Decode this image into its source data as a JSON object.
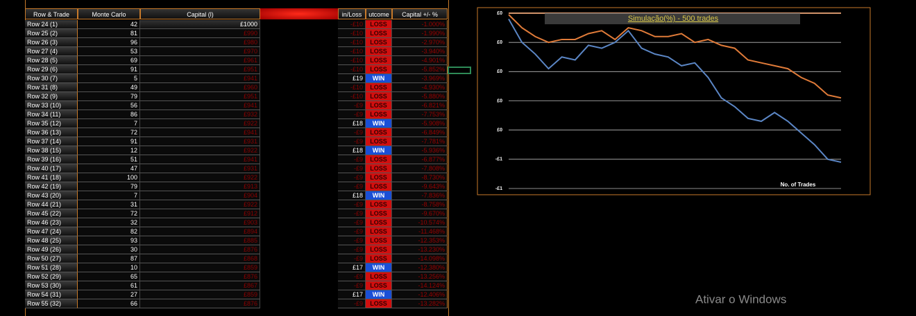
{
  "table": {
    "headers": [
      "Row & Trade",
      "Monte Carlo",
      "Capital (l)",
      "in/Loss",
      "utcome",
      "Capital +/- %"
    ],
    "rows": [
      {
        "row": "Row 24 (1)",
        "monte_carlo": 42,
        "capital": "£1000",
        "win_loss": "-£10",
        "outcome": "LOSS",
        "capital_pct": "-1.000%"
      },
      {
        "row": "Row 25 (2)",
        "monte_carlo": 81,
        "capital": "£990",
        "win_loss": "-£10",
        "outcome": "LOSS",
        "capital_pct": "-1.990%"
      },
      {
        "row": "Row 26 (3)",
        "monte_carlo": 96,
        "capital": "£980",
        "win_loss": "-£10",
        "outcome": "LOSS",
        "capital_pct": "-2.970%"
      },
      {
        "row": "Row 27 (4)",
        "monte_carlo": 53,
        "capital": "£970",
        "win_loss": "-£10",
        "outcome": "LOSS",
        "capital_pct": "-3.940%"
      },
      {
        "row": "Row 28 (5)",
        "monte_carlo": 69,
        "capital": "£961",
        "win_loss": "-£10",
        "outcome": "LOSS",
        "capital_pct": "-4.901%"
      },
      {
        "row": "Row 29 (6)",
        "monte_carlo": 91,
        "capital": "£951",
        "win_loss": "-£10",
        "outcome": "LOSS",
        "capital_pct": "-5.852%"
      },
      {
        "row": "Row 30 (7)",
        "monte_carlo": 5,
        "capital": "£941",
        "win_loss": "£19",
        "outcome": "WIN",
        "capital_pct": "-3.969%"
      },
      {
        "row": "Row 31 (8)",
        "monte_carlo": 49,
        "capital": "£960",
        "win_loss": "-£10",
        "outcome": "LOSS",
        "capital_pct": "-4.930%"
      },
      {
        "row": "Row 32 (9)",
        "monte_carlo": 79,
        "capital": "£951",
        "win_loss": "-£10",
        "outcome": "LOSS",
        "capital_pct": "-5.880%"
      },
      {
        "row": "Row 33 (10)",
        "monte_carlo": 56,
        "capital": "£941",
        "win_loss": "-£9",
        "outcome": "LOSS",
        "capital_pct": "-6.821%"
      },
      {
        "row": "Row 34 (11)",
        "monte_carlo": 86,
        "capital": "£932",
        "win_loss": "-£9",
        "outcome": "LOSS",
        "capital_pct": "-7.753%"
      },
      {
        "row": "Row 35 (12)",
        "monte_carlo": 7,
        "capital": "£922",
        "win_loss": "£18",
        "outcome": "WIN",
        "capital_pct": "-5.908%"
      },
      {
        "row": "Row 36 (13)",
        "monte_carlo": 72,
        "capital": "£941",
        "win_loss": "-£9",
        "outcome": "LOSS",
        "capital_pct": "-6.849%"
      },
      {
        "row": "Row 37 (14)",
        "monte_carlo": 91,
        "capital": "£931",
        "win_loss": "-£9",
        "outcome": "LOSS",
        "capital_pct": "-7.781%"
      },
      {
        "row": "Row 38 (15)",
        "monte_carlo": 12,
        "capital": "£922",
        "win_loss": "£18",
        "outcome": "WIN",
        "capital_pct": "-5.936%"
      },
      {
        "row": "Row 39 (16)",
        "monte_carlo": 51,
        "capital": "£941",
        "win_loss": "-£9",
        "outcome": "LOSS",
        "capital_pct": "-6.877%"
      },
      {
        "row": "Row 40 (17)",
        "monte_carlo": 47,
        "capital": "£931",
        "win_loss": "-£9",
        "outcome": "LOSS",
        "capital_pct": "-7.808%"
      },
      {
        "row": "Row 41 (18)",
        "monte_carlo": 100,
        "capital": "£922",
        "win_loss": "-£9",
        "outcome": "LOSS",
        "capital_pct": "-8.730%"
      },
      {
        "row": "Row 42 (19)",
        "monte_carlo": 79,
        "capital": "£913",
        "win_loss": "-£9",
        "outcome": "LOSS",
        "capital_pct": "-9.643%"
      },
      {
        "row": "Row 43 (20)",
        "monte_carlo": 7,
        "capital": "£904",
        "win_loss": "£18",
        "outcome": "WIN",
        "capital_pct": "-7.836%"
      },
      {
        "row": "Row 44 (21)",
        "monte_carlo": 31,
        "capital": "£922",
        "win_loss": "-£9",
        "outcome": "LOSS",
        "capital_pct": "-8.758%"
      },
      {
        "row": "Row 45 (22)",
        "monte_carlo": 72,
        "capital": "£912",
        "win_loss": "-£9",
        "outcome": "LOSS",
        "capital_pct": "-9.670%"
      },
      {
        "row": "Row 46 (23)",
        "monte_carlo": 32,
        "capital": "£903",
        "win_loss": "-£9",
        "outcome": "LOSS",
        "capital_pct": "-10.574%"
      },
      {
        "row": "Row 47 (24)",
        "monte_carlo": 82,
        "capital": "£894",
        "win_loss": "-£9",
        "outcome": "LOSS",
        "capital_pct": "-11.468%"
      },
      {
        "row": "Row 48 (25)",
        "monte_carlo": 93,
        "capital": "£885",
        "win_loss": "-£9",
        "outcome": "LOSS",
        "capital_pct": "-12.353%"
      },
      {
        "row": "Row 49 (26)",
        "monte_carlo": 30,
        "capital": "£876",
        "win_loss": "-£9",
        "outcome": "LOSS",
        "capital_pct": "-13.230%"
      },
      {
        "row": "Row 50 (27)",
        "monte_carlo": 87,
        "capital": "£868",
        "win_loss": "-£9",
        "outcome": "LOSS",
        "capital_pct": "-14.098%"
      },
      {
        "row": "Row 51 (28)",
        "monte_carlo": 10,
        "capital": "£859",
        "win_loss": "£17",
        "outcome": "WIN",
        "capital_pct": "-12.380%"
      },
      {
        "row": "Row 52 (29)",
        "monte_carlo": 65,
        "capital": "£876",
        "win_loss": "-£9",
        "outcome": "LOSS",
        "capital_pct": "-13.256%"
      },
      {
        "row": "Row 53 (30)",
        "monte_carlo": 61,
        "capital": "£867",
        "win_loss": "-£9",
        "outcome": "LOSS",
        "capital_pct": "-14.124%"
      },
      {
        "row": "Row 54 (31)",
        "monte_carlo": 27,
        "capital": "£859",
        "win_loss": "£17",
        "outcome": "WIN",
        "capital_pct": "-12.406%"
      },
      {
        "row": "Row 55 (32)",
        "monte_carlo": 66,
        "capital": "£876",
        "win_loss": "-£9",
        "outcome": "LOSS",
        "capital_pct": "-13.282%"
      }
    ]
  },
  "chart_data": {
    "type": "line",
    "title": "Simulação(%) - 500 trades",
    "x_label": "No. of Trades",
    "x": [
      0,
      20,
      40,
      60,
      80,
      100,
      120,
      140,
      160,
      180,
      200,
      220,
      240,
      260,
      280,
      300,
      320,
      340,
      360,
      380,
      400,
      420,
      440,
      460,
      480,
      500
    ],
    "xlim": [
      0,
      500
    ],
    "ylim": [
      -0.6,
      0
    ],
    "yticks": [
      {
        "value": 0,
        "label": "£0"
      },
      {
        "value": -0.1,
        "label": "£0"
      },
      {
        "value": -0.2,
        "label": "£0"
      },
      {
        "value": -0.3,
        "label": "£0"
      },
      {
        "value": -0.4,
        "label": "£0"
      },
      {
        "value": -0.5,
        "label": "-£1"
      },
      {
        "value": -0.6,
        "label": "-£1"
      }
    ],
    "grid": true,
    "series": [
      {
        "color": "#e07b39",
        "values": [
          -0.005,
          -0.05,
          -0.08,
          -0.1,
          -0.09,
          -0.09,
          -0.07,
          -0.06,
          -0.09,
          -0.05,
          -0.06,
          -0.08,
          -0.08,
          -0.07,
          -0.1,
          -0.09,
          -0.11,
          -0.12,
          -0.16,
          -0.17,
          -0.18,
          -0.19,
          -0.22,
          -0.24,
          -0.28,
          -0.29
        ]
      },
      {
        "color": "#5b86c5",
        "values": [
          -0.02,
          -0.1,
          -0.14,
          -0.19,
          -0.15,
          -0.16,
          -0.11,
          -0.12,
          -0.1,
          -0.06,
          -0.12,
          -0.14,
          -0.15,
          -0.18,
          -0.17,
          -0.22,
          -0.29,
          -0.32,
          -0.36,
          -0.37,
          -0.34,
          -0.37,
          -0.41,
          -0.45,
          -0.5,
          -0.51
        ]
      }
    ]
  },
  "watermark": "Ativar o Windows"
}
